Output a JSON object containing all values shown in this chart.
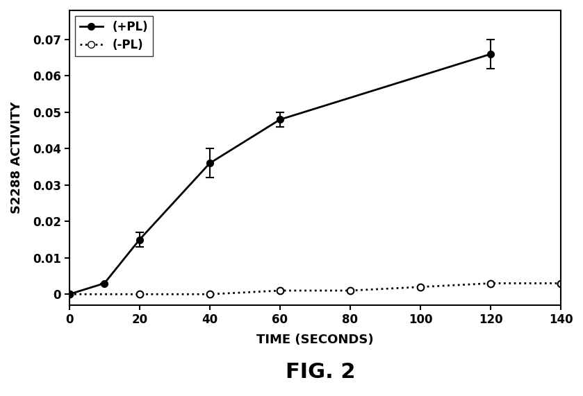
{
  "title": "FIG. 2",
  "ylabel": "S2288 ACTIVITY",
  "xlabel": "TIME (SECONDS)",
  "xlim": [
    0,
    140
  ],
  "ylim": [
    -0.003,
    0.078
  ],
  "xticks": [
    0,
    20,
    40,
    60,
    80,
    100,
    120,
    140
  ],
  "yticks": [
    0,
    0.01,
    0.02,
    0.03,
    0.04,
    0.05,
    0.06,
    0.07
  ],
  "plus_pl_x": [
    0,
    10,
    20,
    40,
    60,
    120
  ],
  "plus_pl_y": [
    0.0,
    0.003,
    0.015,
    0.036,
    0.048,
    0.066
  ],
  "plus_pl_yerr": [
    0.0,
    0.0,
    0.002,
    0.004,
    0.002,
    0.004
  ],
  "minus_pl_x": [
    0,
    20,
    40,
    60,
    80,
    100,
    120,
    140
  ],
  "minus_pl_y": [
    0.0,
    0.0,
    0.0,
    0.001,
    0.001,
    0.002,
    0.003,
    0.003
  ],
  "background_color": "#ffffff",
  "line_color": "#000000",
  "legend_plus": "(+PL)",
  "legend_minus": "(-PL)"
}
